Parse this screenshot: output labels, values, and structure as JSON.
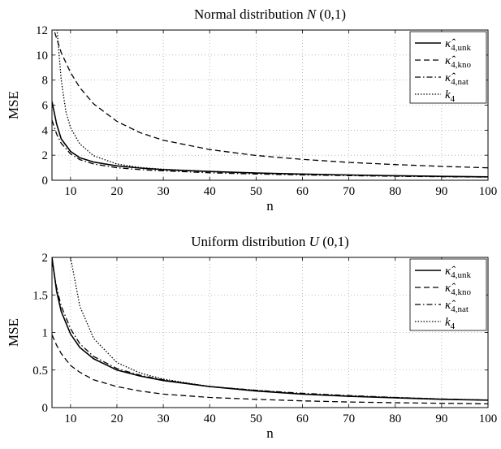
{
  "chart_data": [
    {
      "type": "line",
      "title_text": "Normal distribution ",
      "title_math": "N",
      "title_args": "(0,1)",
      "xlabel": "n",
      "ylabel": "MSE",
      "xlim": [
        6,
        100
      ],
      "ylim": [
        0,
        12
      ],
      "xticks": [
        10,
        20,
        30,
        40,
        50,
        60,
        70,
        80,
        90,
        100
      ],
      "yticks": [
        0,
        2,
        4,
        6,
        8,
        10,
        12
      ],
      "ytick_labels": [
        "0",
        "2",
        "4",
        "6",
        "8",
        "10",
        "12"
      ],
      "grid": "dotted",
      "legend_position": "top-right",
      "series": [
        {
          "name": "κ̂4,unk",
          "style": "solid",
          "x": [
            6,
            7,
            8,
            10,
            12,
            15,
            20,
            25,
            30,
            40,
            50,
            60,
            70,
            80,
            90,
            100
          ],
          "y": [
            6.3,
            4.5,
            3.3,
            2.3,
            1.8,
            1.45,
            1.15,
            0.97,
            0.85,
            0.7,
            0.58,
            0.49,
            0.42,
            0.36,
            0.31,
            0.27
          ]
        },
        {
          "name": "κ̂4,kno",
          "style": "dashed",
          "x": [
            6,
            8,
            10,
            12,
            15,
            20,
            25,
            30,
            40,
            50,
            60,
            70,
            80,
            90,
            100
          ],
          "y": [
            12.5,
            10.2,
            8.6,
            7.4,
            6.1,
            4.7,
            3.8,
            3.2,
            2.45,
            1.98,
            1.67,
            1.43,
            1.25,
            1.11,
            0.99
          ]
        },
        {
          "name": "κ̂4,nat",
          "style": "dashdot",
          "x": [
            6,
            7,
            8,
            10,
            12,
            15,
            20,
            25,
            30,
            40,
            50,
            60,
            70,
            80,
            90,
            100
          ],
          "y": [
            4.8,
            3.7,
            2.95,
            2.1,
            1.65,
            1.3,
            1.0,
            0.85,
            0.75,
            0.6,
            0.5,
            0.42,
            0.37,
            0.32,
            0.28,
            0.25
          ]
        },
        {
          "name": "k4",
          "style": "dotted",
          "x": [
            7,
            8,
            9,
            10,
            12,
            15,
            20,
            25,
            30,
            40,
            50,
            60,
            70,
            80,
            90,
            100
          ],
          "y": [
            12.5,
            8.0,
            5.5,
            4.2,
            2.9,
            1.95,
            1.3,
            1.02,
            0.88,
            0.7,
            0.58,
            0.49,
            0.42,
            0.36,
            0.31,
            0.27
          ]
        }
      ]
    },
    {
      "type": "line",
      "title_text": "Uniform distribution ",
      "title_math": "U",
      "title_args": "(0,1)",
      "xlabel": "n",
      "ylabel": "MSE",
      "xlim": [
        6,
        100
      ],
      "ylim": [
        0,
        2
      ],
      "xticks": [
        10,
        20,
        30,
        40,
        50,
        60,
        70,
        80,
        90,
        100
      ],
      "yticks": [
        0,
        0.5,
        1,
        1.5,
        2
      ],
      "ytick_labels": [
        "0",
        "0.5",
        "1",
        "1.5",
        "2"
      ],
      "grid": "dotted",
      "legend_position": "top-right",
      "series": [
        {
          "name": "κ̂4,unk",
          "style": "solid",
          "x": [
            6,
            7,
            8,
            10,
            12,
            15,
            20,
            25,
            30,
            40,
            50,
            60,
            70,
            80,
            90,
            100
          ],
          "y": [
            2.0,
            1.55,
            1.28,
            0.98,
            0.8,
            0.65,
            0.5,
            0.42,
            0.36,
            0.28,
            0.22,
            0.18,
            0.15,
            0.13,
            0.11,
            0.1
          ]
        },
        {
          "name": "κ̂4,kno",
          "style": "dashed",
          "x": [
            6,
            7,
            8,
            10,
            12,
            15,
            20,
            25,
            30,
            40,
            50,
            60,
            70,
            80,
            90,
            100
          ],
          "y": [
            0.97,
            0.83,
            0.72,
            0.56,
            0.47,
            0.37,
            0.28,
            0.22,
            0.18,
            0.135,
            0.11,
            0.09,
            0.075,
            0.065,
            0.057,
            0.05
          ]
        },
        {
          "name": "κ̂4,nat",
          "style": "dashdot",
          "x": [
            6,
            7,
            8,
            10,
            12,
            15,
            20,
            25,
            30,
            40,
            50,
            60,
            70,
            80,
            90,
            100
          ],
          "y": [
            1.95,
            1.6,
            1.35,
            1.05,
            0.85,
            0.68,
            0.52,
            0.43,
            0.37,
            0.28,
            0.23,
            0.19,
            0.16,
            0.135,
            0.115,
            0.1
          ]
        },
        {
          "name": "k4",
          "style": "dotted",
          "x": [
            10,
            12,
            15,
            20,
            25,
            30,
            40,
            50,
            60,
            70,
            80,
            90,
            100
          ],
          "y": [
            2.0,
            1.35,
            0.92,
            0.6,
            0.46,
            0.38,
            0.28,
            0.23,
            0.18,
            0.155,
            0.135,
            0.115,
            0.1
          ]
        }
      ]
    }
  ]
}
